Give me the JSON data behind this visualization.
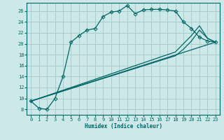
{
  "title": "",
  "xlabel": "Humidex (Indice chaleur)",
  "bg_color": "#cce8e8",
  "grid_color": "#aacccc",
  "line_color": "#006666",
  "xlim": [
    -0.5,
    23.5
  ],
  "ylim": [
    7,
    27.5
  ],
  "xticks": [
    0,
    1,
    2,
    3,
    4,
    5,
    6,
    7,
    8,
    9,
    10,
    11,
    12,
    13,
    14,
    15,
    16,
    17,
    18,
    19,
    20,
    21,
    22,
    23
  ],
  "yticks": [
    8,
    10,
    12,
    14,
    16,
    18,
    20,
    22,
    24,
    26
  ],
  "lines": [
    {
      "x": [
        0,
        1,
        2,
        3,
        4,
        5,
        6,
        7,
        8,
        9,
        10,
        11,
        12,
        13,
        14,
        15,
        16,
        17,
        18,
        19,
        20,
        21,
        22,
        23
      ],
      "y": [
        9.5,
        8.2,
        8.0,
        10.0,
        14.0,
        20.3,
        21.5,
        22.5,
        22.8,
        25.0,
        25.8,
        26.0,
        27.0,
        25.5,
        26.2,
        26.3,
        26.3,
        26.2,
        26.0,
        24.0,
        22.8,
        21.2,
        20.5,
        20.3
      ],
      "marker": "D",
      "markersize": 2.5
    },
    {
      "x": [
        0,
        23
      ],
      "y": [
        9.5,
        20.3
      ],
      "marker": null
    },
    {
      "x": [
        0,
        18,
        19,
        20,
        21,
        22,
        23
      ],
      "y": [
        9.5,
        17.8,
        19.0,
        20.5,
        22.5,
        21.0,
        20.3
      ],
      "marker": null
    },
    {
      "x": [
        0,
        18,
        19,
        20,
        21,
        22,
        23
      ],
      "y": [
        9.5,
        18.5,
        20.0,
        21.5,
        23.3,
        21.0,
        20.3
      ],
      "marker": null
    }
  ]
}
